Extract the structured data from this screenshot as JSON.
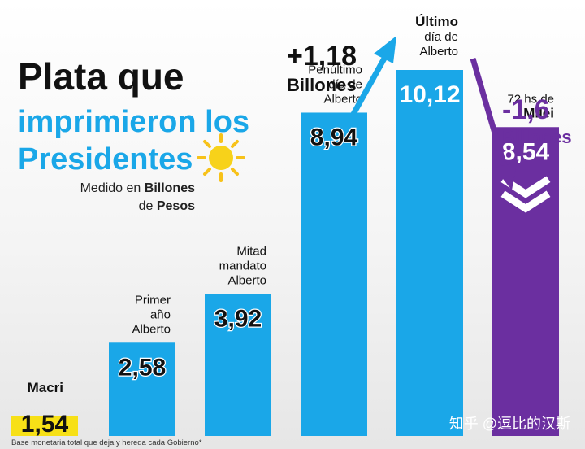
{
  "chart_data": {
    "type": "bar",
    "title_line1": "Plata que",
    "title_line2": "imprimieron los",
    "title_line3": "Presidentes",
    "subtitle_prefix": "Medido en ",
    "subtitle_bold1": "Billones",
    "subtitle_mid": "de ",
    "subtitle_bold2": "Pesos",
    "ylim": [
      0,
      10.12
    ],
    "categories": [
      {
        "lines": [
          "Macri"
        ],
        "bold_line": null
      },
      {
        "lines": [
          "Primer",
          "año",
          "Alberto"
        ],
        "bold_line": null
      },
      {
        "lines": [
          "Mitad",
          "mandato",
          "Alberto"
        ],
        "bold_line": null
      },
      {
        "lines": [
          "Penúltimo",
          "día de",
          "Alberto"
        ],
        "bold_line": null
      },
      {
        "lines": [
          "Último",
          "día de",
          "Alberto"
        ],
        "bold_line": 0
      },
      {
        "lines": [
          "72 hs de",
          "Milei"
        ],
        "bold_line": 1
      }
    ],
    "values": [
      1.54,
      2.58,
      3.92,
      8.94,
      10.12,
      8.54
    ],
    "value_labels": [
      "1,54",
      "2,58",
      "3,92",
      "8,94",
      "10,12",
      "8,54"
    ],
    "bar_colors": [
      "#f7e017",
      "#1aa7e8",
      "#1aa7e8",
      "#1aa7e8",
      "#1aa7e8",
      "#6b2fa0"
    ],
    "annotations": [
      {
        "value": "+1,18",
        "label": "Billones",
        "color": "#111111",
        "arrow_color": "#1aa7e8"
      },
      {
        "value": "-1,6",
        "label": "Billones",
        "color": "#6b2fa0",
        "arrow_color": "#6b2fa0"
      }
    ],
    "footnote": "Base monetaria total que deja y hereda cada Gobierno*"
  },
  "watermark": "知乎 @逗比的汉斯"
}
